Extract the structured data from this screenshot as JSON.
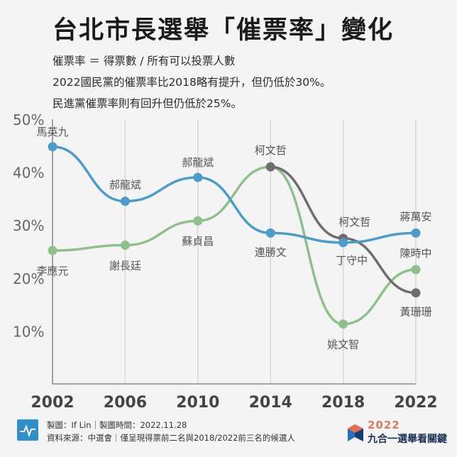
{
  "header": {
    "title": "台北市長選舉「催票率」變化",
    "definition": "催票率 ＝ 得票數 / 所有可以投票人數",
    "note_line1": "2022國民黨的催票率比2018略有提升，但仍低於30%。",
    "note_line2": "民進黨催票率則有回升但仍低於25%。"
  },
  "colors": {
    "blue": "#4a9cc9",
    "green": "#8dc08b",
    "gray": "#6e6e6e",
    "axis": "#8a8a8a",
    "grid": "#d6d6d6"
  },
  "chart_data": {
    "type": "line",
    "x": [
      2002,
      2006,
      2010,
      2014,
      2018,
      2022
    ],
    "tick_labels_x": [
      "2002",
      "2006",
      "2010",
      "2014",
      "2018",
      "2022"
    ],
    "tick_labels_y": [
      "10%",
      "20%",
      "30%",
      "40%",
      "50%"
    ],
    "ylim": [
      0,
      50
    ],
    "y_ticks": [
      10,
      20,
      30,
      40,
      50
    ],
    "grid_x": true,
    "series": [
      {
        "color": "#4a9cc9",
        "points": [
          {
            "x": 2002,
            "y": 44.8,
            "label": "馬英九"
          },
          {
            "x": 2006,
            "y": 34.5,
            "label": "郝龍斌"
          },
          {
            "x": 2010,
            "y": 39.0,
            "label": "郝龍斌"
          },
          {
            "x": 2014,
            "y": 28.5,
            "label": "連勝文"
          },
          {
            "x": 2018,
            "y": 26.7,
            "label": "丁守中"
          },
          {
            "x": 2022,
            "y": 28.5,
            "label": "蔣萬安"
          }
        ]
      },
      {
        "color": "#8dc08b",
        "points": [
          {
            "x": 2002,
            "y": 25.2,
            "label": "李應元"
          },
          {
            "x": 2006,
            "y": 26.2,
            "label": "謝長廷"
          },
          {
            "x": 2010,
            "y": 30.8,
            "label": "蘇貞昌"
          },
          {
            "x": 2014,
            "y": 41.0,
            "label": ""
          },
          {
            "x": 2018,
            "y": 11.3,
            "label": "姚文智"
          },
          {
            "x": 2022,
            "y": 21.6,
            "label": "陳時中"
          }
        ]
      },
      {
        "color": "#6e6e6e",
        "points": [
          {
            "x": 2014,
            "y": 41.0,
            "label": "柯文哲"
          },
          {
            "x": 2018,
            "y": 27.5,
            "label": "柯文哲"
          },
          {
            "x": 2022,
            "y": 17.2,
            "label": "黃珊珊"
          }
        ]
      }
    ]
  },
  "footer": {
    "credit": "製圖：If Lin｜製圖時間：2022.11.28",
    "source": "資料來源：中選會｜僅呈現得票前二名與2018/2022前三名的候選人",
    "brand_year": "2022",
    "brand_name": "九合一選舉看關鍵"
  }
}
